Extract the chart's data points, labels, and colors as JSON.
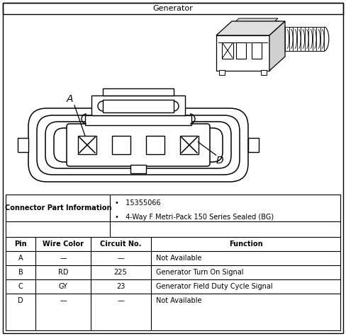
{
  "title": "Generator",
  "connector_part_label": "Connector Part Information",
  "connector_part_info": [
    "15355066",
    "4-Way F Metri-Pack 150 Series Sealed (BG)"
  ],
  "table_headers": [
    "Pin",
    "Wire Color",
    "Circuit No.",
    "Function"
  ],
  "table_rows": [
    [
      "A",
      "—",
      "—",
      "Not Available"
    ],
    [
      "B",
      "RD",
      "225",
      "Generator Turn On Signal"
    ],
    [
      "C",
      "GY",
      "23",
      "Generator Field Duty Cycle Signal"
    ],
    [
      "D",
      "—",
      "—",
      "Not Available"
    ]
  ],
  "label_A": "A",
  "label_D": "D",
  "bg_color": "#ffffff",
  "line_color": "#000000",
  "fig_width": 4.88,
  "fig_height": 4.75
}
